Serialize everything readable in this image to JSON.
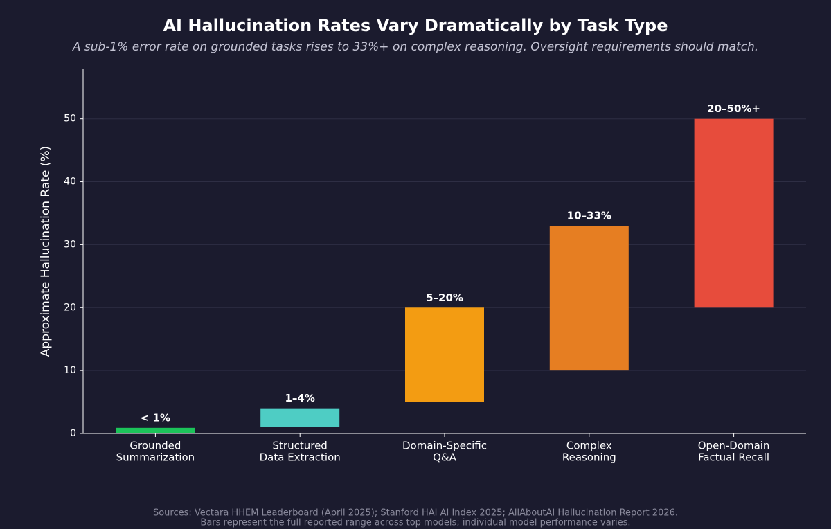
{
  "chart_data": {
    "type": "range-bar",
    "title": "AI Hallucination Rates Vary Dramatically by Task Type",
    "subtitle": "A sub-1% error rate on grounded tasks rises to 33%+ on complex reasoning. Oversight requirements should match.",
    "y_label": "Approximate Hallucination Rate (%)",
    "categories": [
      [
        "Grounded",
        "Summarization"
      ],
      [
        "Structured",
        "Data Extraction"
      ],
      [
        "Domain-Specific",
        "Q&A"
      ],
      [
        "Complex",
        "Reasoning"
      ],
      [
        "Open-Domain",
        "Factual Recall"
      ]
    ],
    "low": [
      0,
      1,
      5,
      10,
      20
    ],
    "high": [
      0.9,
      4,
      20,
      33,
      50
    ],
    "value_labels": [
      "< 1%",
      "1–4%",
      "5–20%",
      "10–33%",
      "20–50%+"
    ],
    "colors": [
      "#1cc45a",
      "#4ecdc4",
      "#f39c12",
      "#e67e22",
      "#e74c3c"
    ],
    "ylim": [
      0,
      58
    ],
    "yticks": [
      0,
      10,
      20,
      30,
      40,
      50
    ],
    "grid": true,
    "footnote": [
      "Sources: Vectara HHEM Leaderboard (April 2025); Stanford HAI AI Index 2025; AllAboutAI Hallucination Report 2026.",
      "Bars represent the full reported range across top models; individual model performance varies."
    ]
  }
}
